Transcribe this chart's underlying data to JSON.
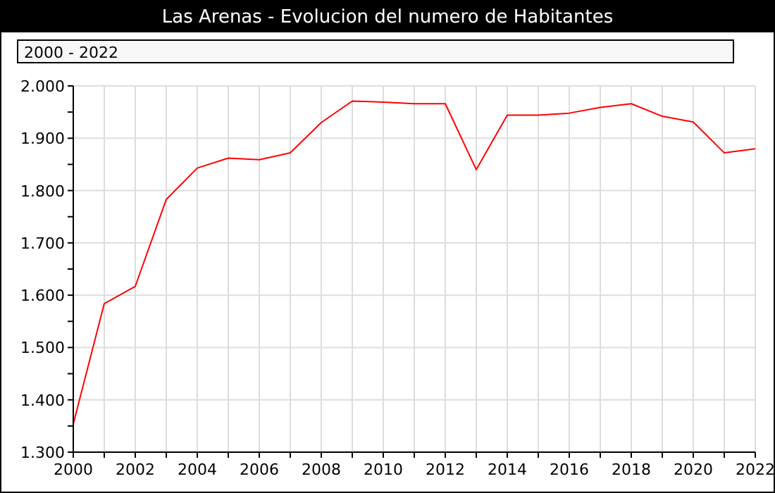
{
  "chart_data": {
    "type": "line",
    "title": "Las Arenas - Evolucion del numero de Habitantes",
    "subtitle": "2000 - 2022",
    "x": [
      2000,
      2001,
      2002,
      2003,
      2004,
      2005,
      2006,
      2007,
      2008,
      2009,
      2010,
      2011,
      2012,
      2013,
      2014,
      2015,
      2016,
      2017,
      2018,
      2019,
      2020,
      2021,
      2022
    ],
    "series": [
      {
        "color": "#ff0000",
        "values": [
          1354,
          1584,
          1617,
          1783,
          1843,
          1862,
          1859,
          1872,
          1930,
          1971,
          1969,
          1966,
          1966,
          1840,
          1944,
          1944,
          1948,
          1959,
          1966,
          1942,
          1931,
          1872,
          1880
        ]
      }
    ],
    "xlim": [
      2000,
      2022
    ],
    "xticks": [
      2000,
      {
        "value": 2001,
        "label": null
      },
      2002,
      {
        "value": 2003,
        "label": null
      },
      2004,
      {
        "value": 2005,
        "label": null
      },
      2006,
      {
        "value": 2007,
        "label": null
      },
      2008,
      {
        "value": 2009,
        "label": null
      },
      2010,
      {
        "value": 2011,
        "label": null
      },
      2012,
      {
        "value": 2013,
        "label": null
      },
      2014,
      {
        "value": 2015,
        "label": null
      },
      2016,
      {
        "value": 2017,
        "label": null
      },
      2018,
      {
        "value": 2019,
        "label": null
      },
      2020,
      {
        "value": 2021,
        "label": null
      },
      2022
    ],
    "ylim": [
      1300,
      2000
    ],
    "yticks": [
      {
        "value": 1300,
        "label": "1.300"
      },
      {
        "value": 1350,
        "label": null
      },
      {
        "value": 1400,
        "label": "1.400"
      },
      {
        "value": 1450,
        "label": null
      },
      {
        "value": 1500,
        "label": "1.500"
      },
      {
        "value": 1550,
        "label": null
      },
      {
        "value": 1600,
        "label": "1.600"
      },
      {
        "value": 1650,
        "label": null
      },
      {
        "value": 1700,
        "label": "1.700"
      },
      {
        "value": 1750,
        "label": null
      },
      {
        "value": 1800,
        "label": "1.800"
      },
      {
        "value": 1850,
        "label": null
      },
      {
        "value": 1900,
        "label": "1.900"
      },
      {
        "value": 1950,
        "label": null
      },
      {
        "value": 2000,
        "label": "2.000"
      }
    ],
    "grid": true,
    "marker": "none",
    "line_style": "solid"
  }
}
